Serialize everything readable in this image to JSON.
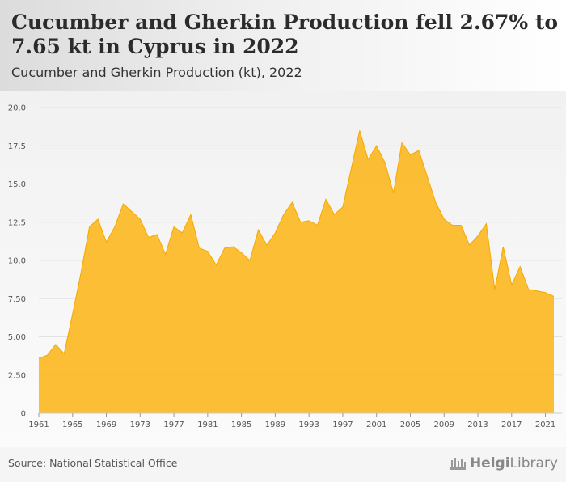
{
  "header": {
    "title": "Cucumber and Gherkin Production fell 2.67% to 7.65 kt in Cyprus in 2022",
    "subtitle": "Cucumber and Gherkin Production (kt), 2022"
  },
  "footer": {
    "source": "Source: National Statistical Office",
    "logo_text_bold": "Helgi",
    "logo_text": "Library"
  },
  "colors": {
    "area_fill": "#fbb923",
    "area_stroke": "#f5a800",
    "grid": "#e2e2e2"
  },
  "chart_data": {
    "type": "area",
    "x": [
      1961,
      1962,
      1963,
      1964,
      1965,
      1966,
      1967,
      1968,
      1969,
      1970,
      1971,
      1972,
      1973,
      1974,
      1975,
      1976,
      1977,
      1978,
      1979,
      1980,
      1981,
      1982,
      1983,
      1984,
      1985,
      1986,
      1987,
      1988,
      1989,
      1990,
      1991,
      1992,
      1993,
      1994,
      1995,
      1996,
      1997,
      1998,
      1999,
      2000,
      2001,
      2002,
      2003,
      2004,
      2005,
      2006,
      2007,
      2008,
      2009,
      2010,
      2011,
      2012,
      2013,
      2014,
      2015,
      2016,
      2017,
      2018,
      2019,
      2020,
      2021,
      2022
    ],
    "series": [
      {
        "values": [
          3.6,
          3.8,
          4.5,
          3.9,
          6.5,
          9.2,
          12.2,
          12.7,
          11.2,
          12.2,
          13.7,
          13.2,
          12.7,
          11.5,
          11.7,
          10.4,
          12.2,
          11.8,
          13.0,
          10.8,
          10.6,
          9.7,
          10.8,
          10.9,
          10.5,
          10.0,
          12.0,
          11.0,
          11.8,
          13.0,
          13.8,
          12.5,
          12.6,
          12.3,
          14.0,
          13.0,
          13.5,
          16.0,
          18.5,
          16.6,
          17.5,
          16.4,
          14.4,
          17.7,
          16.9,
          17.2,
          15.5,
          13.8,
          12.7,
          12.3,
          12.3,
          11.0,
          11.6,
          12.4,
          8.1,
          10.9,
          8.4,
          9.6,
          8.1,
          8.0,
          7.9,
          7.65
        ]
      }
    ],
    "x_ticks": [
      1961,
      1965,
      1969,
      1973,
      1977,
      1981,
      1985,
      1989,
      1993,
      1997,
      2001,
      2005,
      2009,
      2013,
      2017,
      2021
    ],
    "y_ticks": [
      "0",
      "2.50",
      "5.00",
      "7.50",
      "10.0",
      "12.5",
      "15.0",
      "17.5",
      "20.0"
    ],
    "ylim": [
      0,
      20
    ],
    "xlim": [
      1961,
      2022
    ],
    "grid": true
  }
}
